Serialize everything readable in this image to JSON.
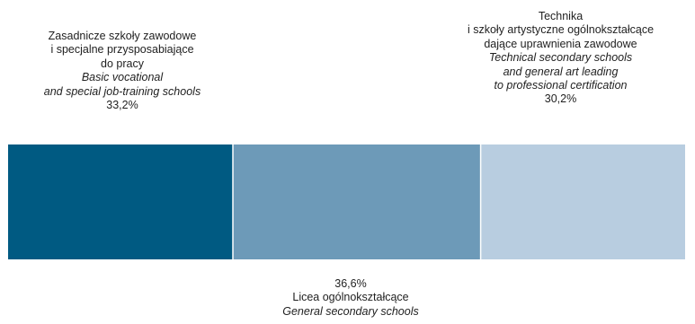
{
  "chart_data": {
    "type": "bar",
    "orientation": "horizontal-stacked-100",
    "categories": [
      "Zasadnicze szkoły zawodowe i specjalne przysposabiające do pracy",
      "Licea ogólnokształcące",
      "Technika i szkoły artystyczne ogólnokształcące dające uprawnienia zawodowe"
    ],
    "values": [
      33.2,
      36.6,
      30.2
    ],
    "value_labels": [
      "33,2%",
      "36,6%",
      "30,2%"
    ],
    "colors": [
      "#005a82",
      "#6d9ab8",
      "#b8cde0"
    ],
    "segments": [
      {
        "pl": [
          "Zasadnicze szkoły zawodowe",
          "i specjalne przysposabiające",
          "do pracy"
        ],
        "en": [
          "Basic vocational",
          "and special job-training schools"
        ],
        "value_label": "33,2%",
        "label_position": "above"
      },
      {
        "pl": [
          "Licea ogólnokształcące"
        ],
        "en": [
          "General secondary schools"
        ],
        "value_label": "36,6%",
        "label_position": "below"
      },
      {
        "pl": [
          "Technika",
          "i szkoły artystyczne ogólnokształcące",
          "dające uprawnienia zawodowe"
        ],
        "en": [
          "Technical secondary schools",
          "and general art leading",
          "to professional certification"
        ],
        "value_label": "30,2%",
        "label_position": "above"
      }
    ],
    "xlim": [
      0,
      100
    ],
    "grid": false,
    "legend": "none"
  }
}
